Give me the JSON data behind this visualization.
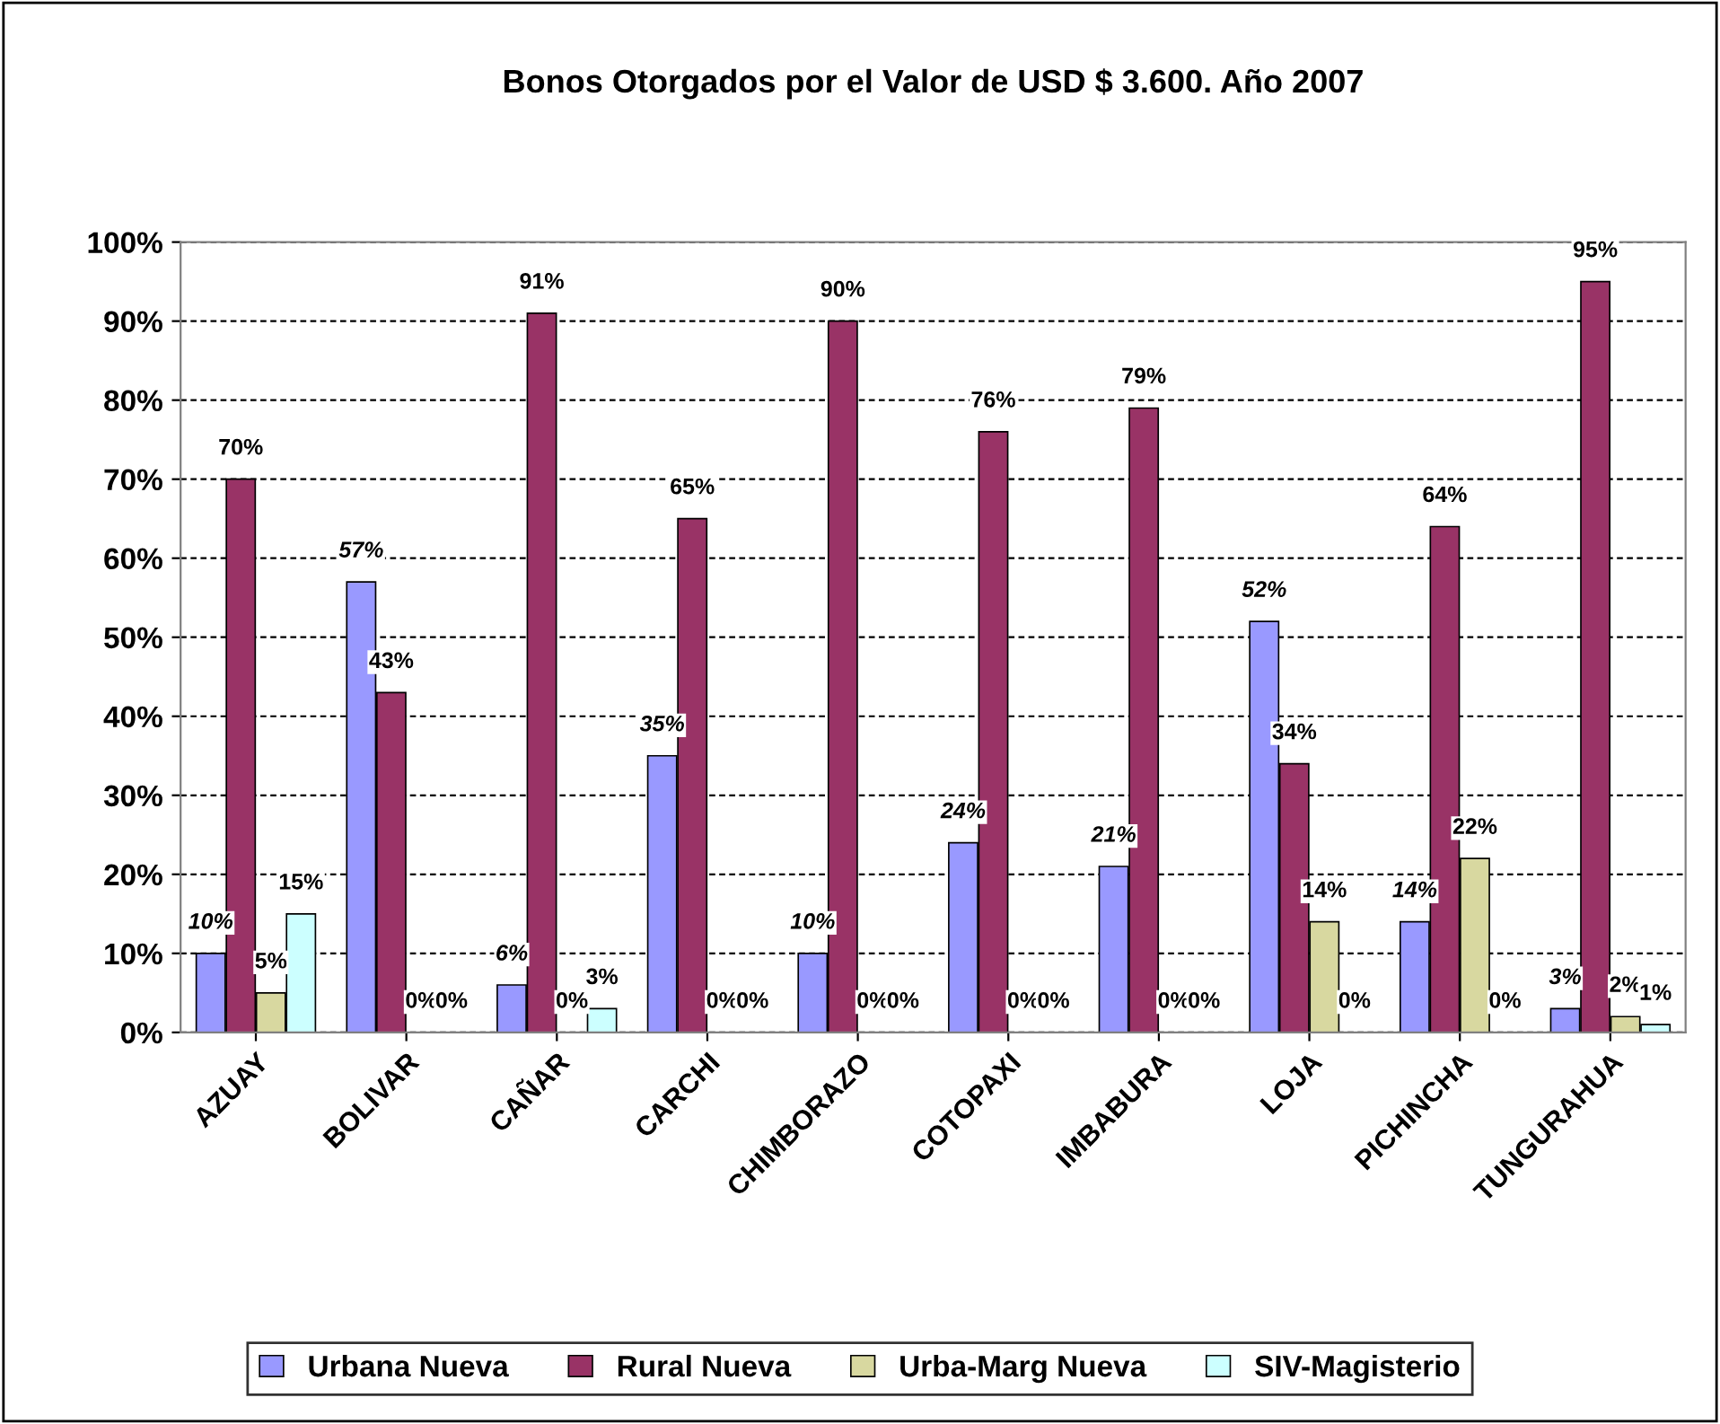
{
  "chart_data": {
    "type": "bar",
    "title": "Bonos Otorgados por el Valor de USD $ 3.600. Año 2007",
    "categories": [
      "AZUAY",
      "BOLIVAR",
      "CAÑAR",
      "CARCHI",
      "CHIMBORAZO",
      "COTOPAXI",
      "IMBABURA",
      "LOJA",
      "PICHINCHA",
      "TUNGURAHUA"
    ],
    "series": [
      {
        "name": "Urbana Nueva",
        "color": "#9999ff",
        "values": [
          10,
          57,
          6,
          35,
          10,
          24,
          21,
          52,
          14,
          3
        ],
        "value_labels": [
          "10%",
          "57%",
          "6%",
          "35%",
          "10%",
          "24%",
          "21%",
          "52%",
          "14%",
          "3%"
        ]
      },
      {
        "name": "Rural Nueva",
        "color": "#993366",
        "values": [
          70,
          43,
          91,
          65,
          90,
          76,
          79,
          34,
          64,
          95
        ],
        "value_labels": [
          "70%",
          "43%",
          "91%",
          "65%",
          "90%",
          "76%",
          "79%",
          "34%",
          "64%",
          "95%"
        ]
      },
      {
        "name": "Urba-Marg Nueva",
        "color": "#d8d8a0",
        "values": [
          5,
          0,
          0,
          0,
          0,
          0,
          0,
          14,
          22,
          2
        ],
        "value_labels": [
          "5%",
          "0%",
          "0%",
          "0%",
          "0%",
          "0%",
          "0%",
          "14%",
          "22%",
          "2%"
        ]
      },
      {
        "name": "SIV-Magisterio",
        "color": "#ccffff",
        "values": [
          15,
          0,
          3,
          0,
          0,
          0,
          0,
          0,
          0,
          1
        ],
        "value_labels": [
          "15%",
          "0%",
          "3%",
          "0%",
          "0%",
          "0%",
          "0%",
          "0%",
          "0%",
          "1%"
        ]
      }
    ],
    "ylim": [
      0,
      100
    ],
    "yticks": [
      {
        "value": 0,
        "label": "0%"
      },
      {
        "value": 10,
        "label": "10%"
      },
      {
        "value": 20,
        "label": "20%"
      },
      {
        "value": 30,
        "label": "30%"
      },
      {
        "value": 40,
        "label": "40%"
      },
      {
        "value": 50,
        "label": "50%"
      },
      {
        "value": 60,
        "label": "60%"
      },
      {
        "value": 70,
        "label": "70%"
      },
      {
        "value": 80,
        "label": "80%"
      },
      {
        "value": 90,
        "label": "90%"
      },
      {
        "value": 100,
        "label": "100%"
      }
    ],
    "grid": "y",
    "legend": "bottom"
  }
}
